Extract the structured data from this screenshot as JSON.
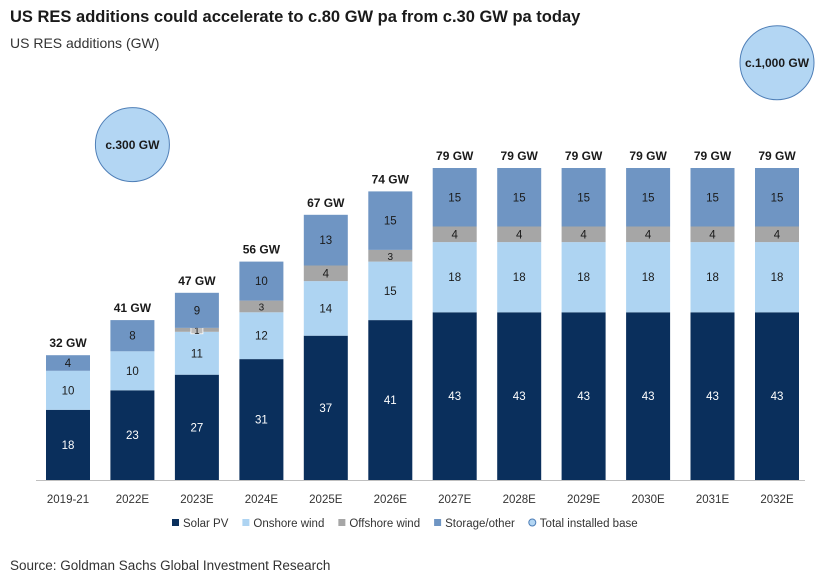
{
  "header": {
    "title": "US RES additions could accelerate to c.80 GW pa from c.30 GW pa today",
    "subtitle": "US RES additions (GW)"
  },
  "footer": {
    "source": "Source: Goldman Sachs Global Investment Research"
  },
  "colors": {
    "solar": "#0a2f5c",
    "onshore": "#aed4f2",
    "offshore": "#a6a6a6",
    "storage": "#6f95c3",
    "bubble_fill": "#b3d6f3",
    "bubble_stroke": "#4f7fb7",
    "axis": "#bfbfbf"
  },
  "chart_data": {
    "type": "bar",
    "stacked": true,
    "title": "US RES additions could accelerate to c.80 GW pa from c.30 GW pa today",
    "subtitle": "US RES additions (GW)",
    "categories": [
      "2019-21",
      "2022E",
      "2023E",
      "2024E",
      "2025E",
      "2026E",
      "2027E",
      "2028E",
      "2029E",
      "2030E",
      "2031E",
      "2032E"
    ],
    "series": [
      {
        "name": "Solar PV",
        "key": "solar",
        "values": [
          18,
          23,
          27,
          31,
          37,
          41,
          43,
          43,
          43,
          43,
          43,
          43
        ]
      },
      {
        "name": "Onshore wind",
        "key": "onshore",
        "values": [
          10,
          10,
          11,
          12,
          14,
          15,
          18,
          18,
          18,
          18,
          18,
          18
        ]
      },
      {
        "name": "Offshore wind",
        "key": "offshore",
        "values": [
          0,
          0,
          1,
          3,
          4,
          3,
          4,
          4,
          4,
          4,
          4,
          4
        ]
      },
      {
        "name": "Storage/other",
        "key": "storage",
        "values": [
          4,
          8,
          9,
          10,
          13,
          15,
          15,
          15,
          15,
          15,
          15,
          15
        ]
      }
    ],
    "totals": [
      "32 GW",
      "41 GW",
      "47 GW",
      "56 GW",
      "67 GW",
      "74 GW",
      "79 GW",
      "79 GW",
      "79 GW",
      "79 GW",
      "79 GW",
      "79 GW"
    ],
    "ylim": [
      0,
      100
    ],
    "grid": false,
    "legend_position": "bottom",
    "legend_extra": "Total installed base",
    "annotations": [
      {
        "label": "c.300 GW",
        "category": "2022E",
        "value": 86
      },
      {
        "label": "c.1,000 GW",
        "category": "2032E",
        "value": 107
      }
    ]
  }
}
